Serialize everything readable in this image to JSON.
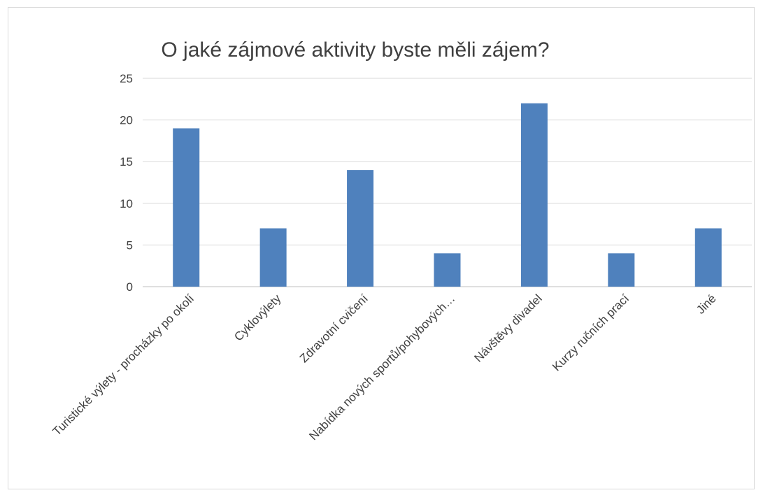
{
  "chart_data": {
    "type": "bar",
    "title": "O jaké zájmové aktivity byste měli zájem?",
    "categories": [
      "Turistické výlety - procházky po okolí",
      "Cyklovýlety",
      "Zdravotní cvičení",
      "Nabídka nových sportů/pohybových…",
      "Návštěvy divadel",
      "Kurzy ručních prací",
      "Jiné"
    ],
    "values": [
      19,
      7,
      14,
      4,
      22,
      4,
      7
    ],
    "ylim": [
      0,
      25
    ],
    "yticks": [
      0,
      5,
      10,
      15,
      20,
      25
    ],
    "grid": true,
    "legend": "none",
    "bar_color": "#4f81bd"
  }
}
